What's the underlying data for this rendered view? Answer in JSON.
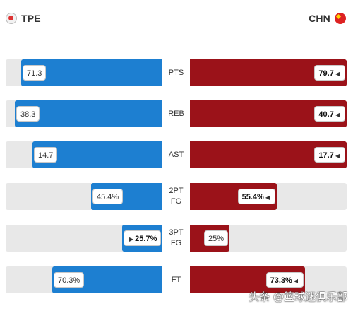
{
  "teams": {
    "left": {
      "code": "TPE",
      "flag_icon": "tpe-flag-icon",
      "color": "#1d7fd1"
    },
    "right": {
      "code": "CHN",
      "flag_icon": "chn-flag-icon",
      "color": "#9b1219"
    }
  },
  "stats": [
    {
      "label_lines": [
        "PTS"
      ],
      "left": {
        "value": "71.3",
        "fraction": 0.9,
        "leader": false
      },
      "right": {
        "value": "79.7",
        "fraction": 1.0,
        "leader": true
      }
    },
    {
      "label_lines": [
        "REB"
      ],
      "left": {
        "value": "38.3",
        "fraction": 0.94,
        "leader": false
      },
      "right": {
        "value": "40.7",
        "fraction": 1.0,
        "leader": true
      }
    },
    {
      "label_lines": [
        "AST"
      ],
      "left": {
        "value": "14.7",
        "fraction": 0.83,
        "leader": false
      },
      "right": {
        "value": "17.7",
        "fraction": 1.0,
        "leader": true
      }
    },
    {
      "label_lines": [
        "2PT",
        "FG"
      ],
      "left": {
        "value": "45.4%",
        "fraction": 0.454,
        "leader": false
      },
      "right": {
        "value": "55.4%",
        "fraction": 0.554,
        "leader": true
      }
    },
    {
      "label_lines": [
        "3PT",
        "FG"
      ],
      "left": {
        "value": "25.7%",
        "fraction": 0.257,
        "leader": true
      },
      "right": {
        "value": "25%",
        "fraction": 0.25,
        "leader": false
      }
    },
    {
      "label_lines": [
        "FT"
      ],
      "left": {
        "value": "70.3%",
        "fraction": 0.703,
        "leader": false
      },
      "right": {
        "value": "73.3%",
        "fraction": 0.733,
        "leader": true
      }
    }
  ],
  "watermark": "头条 @篮球迷俱乐部"
}
